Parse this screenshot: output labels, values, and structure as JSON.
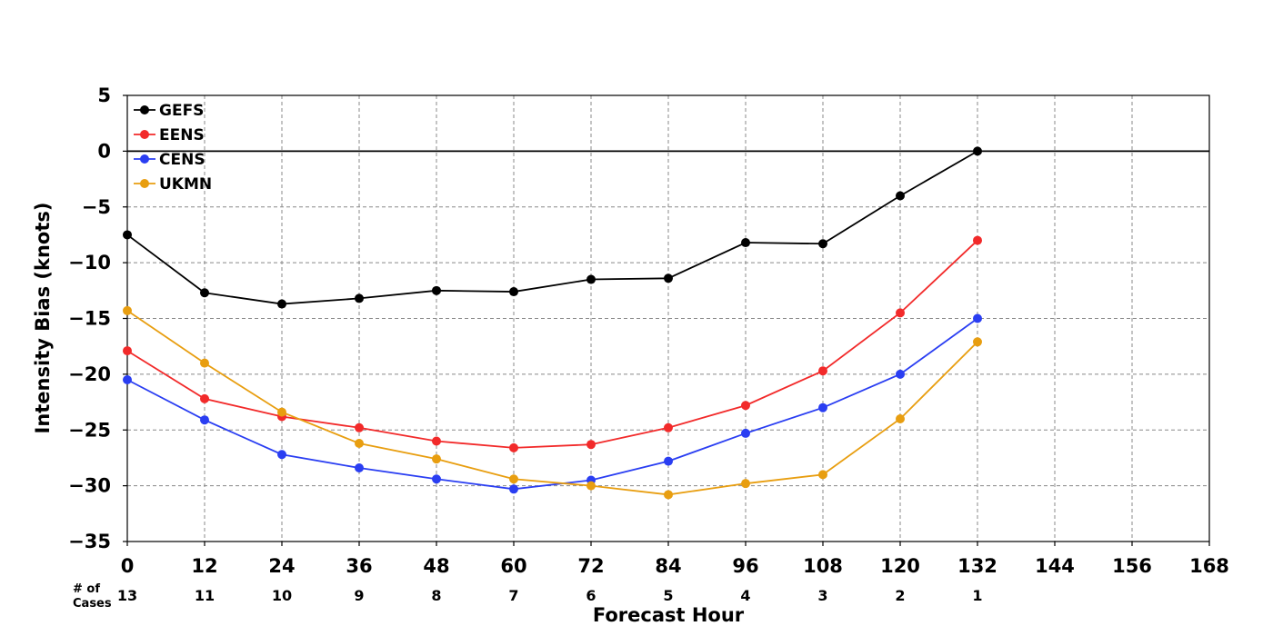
{
  "chart_data": {
    "type": "line",
    "xlabel": "Forecast Hour",
    "ylabel": "Intensity Bias (knots)",
    "xlim": [
      0,
      168
    ],
    "ylim": [
      -35,
      5
    ],
    "xticks": [
      "0",
      "12",
      "24",
      "36",
      "48",
      "60",
      "72",
      "84",
      "96",
      "108",
      "120",
      "132",
      "144",
      "156",
      "168"
    ],
    "yticks": [
      "5",
      "0",
      "−5",
      "−10",
      "−15",
      "−20",
      "−25",
      "−30",
      "−35"
    ],
    "grid": true,
    "legend_position": "top-left",
    "x": [
      0,
      12,
      24,
      36,
      48,
      60,
      72,
      84,
      96,
      108,
      120,
      132
    ],
    "series": [
      {
        "name": "GEFS",
        "color": "#000000",
        "values": [
          -7.5,
          -12.7,
          -13.7,
          -13.2,
          -12.5,
          -12.6,
          -11.5,
          -11.4,
          -8.2,
          -8.3,
          -4.0,
          0.0
        ]
      },
      {
        "name": "EENS",
        "color": "#f22a2a",
        "values": [
          -17.9,
          -22.2,
          -23.8,
          -24.8,
          -26.0,
          -26.6,
          -26.3,
          -24.8,
          -22.8,
          -19.7,
          -14.5,
          -8.0
        ]
      },
      {
        "name": "CENS",
        "color": "#2a3ef2",
        "values": [
          -20.5,
          -24.1,
          -27.2,
          -28.4,
          -29.4,
          -30.3,
          -29.5,
          -27.8,
          -25.3,
          -23.0,
          -20.0,
          -15.0
        ]
      },
      {
        "name": "UKMN",
        "color": "#e89e10",
        "values": [
          -14.3,
          -19.0,
          -23.4,
          -26.2,
          -27.6,
          -29.4,
          -30.0,
          -30.8,
          -29.8,
          -29.0,
          -24.0,
          -17.1
        ]
      }
    ],
    "cases_label_line1": "# of",
    "cases_label_line2": "Cases",
    "cases": [
      "13",
      "11",
      "10",
      "9",
      "8",
      "7",
      "6",
      "5",
      "4",
      "3",
      "2",
      "1"
    ]
  }
}
